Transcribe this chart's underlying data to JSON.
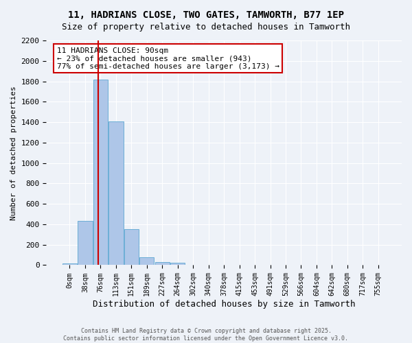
{
  "title_line1": "11, HADRIANS CLOSE, TWO GATES, TAMWORTH, B77 1EP",
  "title_line2": "Size of property relative to detached houses in Tamworth",
  "xlabel": "Distribution of detached houses by size in Tamworth",
  "ylabel": "Number of detached properties",
  "bin_labels": [
    "0sqm",
    "38sqm",
    "76sqm",
    "113sqm",
    "151sqm",
    "189sqm",
    "227sqm",
    "264sqm",
    "302sqm",
    "340sqm",
    "378sqm",
    "415sqm",
    "453sqm",
    "491sqm",
    "529sqm",
    "566sqm",
    "604sqm",
    "642sqm",
    "680sqm",
    "717sqm",
    "755sqm"
  ],
  "bar_values": [
    15,
    430,
    1820,
    1410,
    355,
    80,
    30,
    20,
    0,
    0,
    0,
    0,
    0,
    0,
    0,
    0,
    0,
    0,
    0,
    0,
    0
  ],
  "bar_color": "#aec6e8",
  "bar_edgecolor": "#6baed6",
  "property_sqm": 90,
  "property_bin_index": 2,
  "vline_color": "#cc0000",
  "annotation_line1": "11 HADRIANS CLOSE: 90sqm",
  "annotation_line2": "← 23% of detached houses are smaller (943)",
  "annotation_line3": "77% of semi-detached houses are larger (3,173) →",
  "annotation_box_edgecolor": "#cc0000",
  "annotation_box_facecolor": "#ffffff",
  "ylim": [
    0,
    2200
  ],
  "yticks": [
    0,
    200,
    400,
    600,
    800,
    1000,
    1200,
    1400,
    1600,
    1800,
    2000,
    2200
  ],
  "footer_line1": "Contains HM Land Registry data © Crown copyright and database right 2025.",
  "footer_line2": "Contains public sector information licensed under the Open Government Licence v3.0.",
  "background_color": "#eef2f8",
  "grid_color": "#ffffff"
}
